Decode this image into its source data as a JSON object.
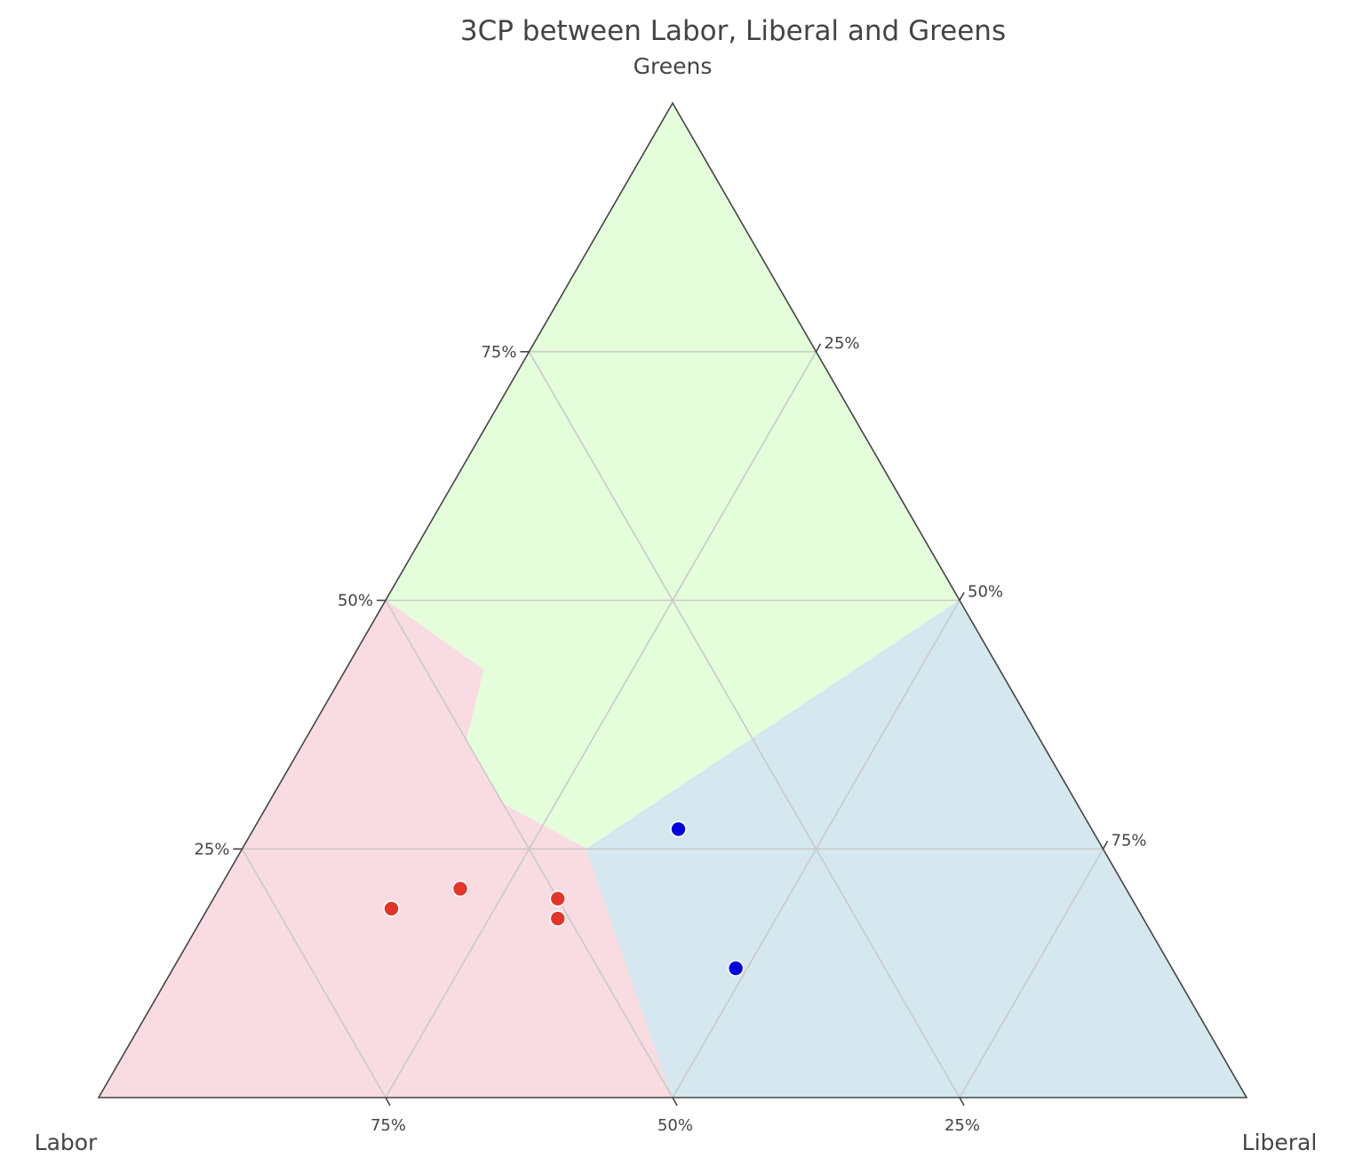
{
  "chart_data": {
    "type": "scatter",
    "subtype": "ternary",
    "title": "3CP between Labor, Liberal and Greens",
    "axes": {
      "a": {
        "label": "Greens",
        "vertex": "top"
      },
      "b": {
        "label": "Labor",
        "vertex": "bottom-left"
      },
      "c": {
        "label": "Liberal",
        "vertex": "bottom-right"
      }
    },
    "ticks": [
      {
        "value": 0.25,
        "label": "25%"
      },
      {
        "value": 0.5,
        "label": "50%"
      },
      {
        "value": 0.75,
        "label": "75%"
      }
    ],
    "grid": true,
    "regions": [
      {
        "name": "Greens",
        "color": "#e4fedb",
        "points": [
          [
            1,
            0,
            0
          ],
          [
            0.5,
            0.5,
            0
          ],
          [
            0.43,
            0.45,
            0.12
          ],
          [
            0.36,
            0.5,
            0.14
          ],
          [
            0.295,
            0.5,
            0.205
          ],
          [
            0.25,
            0.45,
            0.3
          ],
          [
            0.5,
            0,
            0.5
          ]
        ]
      },
      {
        "name": "Labor",
        "color": "#f9dbe2",
        "points": [
          [
            0,
            1,
            0
          ],
          [
            0.5,
            0.5,
            0
          ],
          [
            0.43,
            0.45,
            0.12
          ],
          [
            0.36,
            0.5,
            0.14
          ],
          [
            0.295,
            0.5,
            0.205
          ],
          [
            0.25,
            0.45,
            0.3
          ],
          [
            0,
            0.5,
            0.5
          ]
        ]
      },
      {
        "name": "Liberal",
        "color": "#d5e8f0",
        "points": [
          [
            0,
            0,
            1
          ],
          [
            0.5,
            0,
            0.5
          ],
          [
            0.25,
            0.45,
            0.3
          ],
          [
            0,
            0.5,
            0.5
          ]
        ]
      }
    ],
    "series": [
      {
        "color": "#e3352a",
        "points": [
          {
            "greens": 0.21,
            "labor": 0.58,
            "liberal": 0.21
          },
          {
            "greens": 0.19,
            "labor": 0.65,
            "liberal": 0.16
          },
          {
            "greens": 0.2,
            "labor": 0.5,
            "liberal": 0.3
          },
          {
            "greens": 0.18,
            "labor": 0.51,
            "liberal": 0.31
          }
        ]
      },
      {
        "color": "#0000e0",
        "points": [
          {
            "greens": 0.27,
            "labor": 0.36,
            "liberal": 0.37
          },
          {
            "greens": 0.13,
            "labor": 0.38,
            "liberal": 0.49
          }
        ]
      }
    ]
  }
}
